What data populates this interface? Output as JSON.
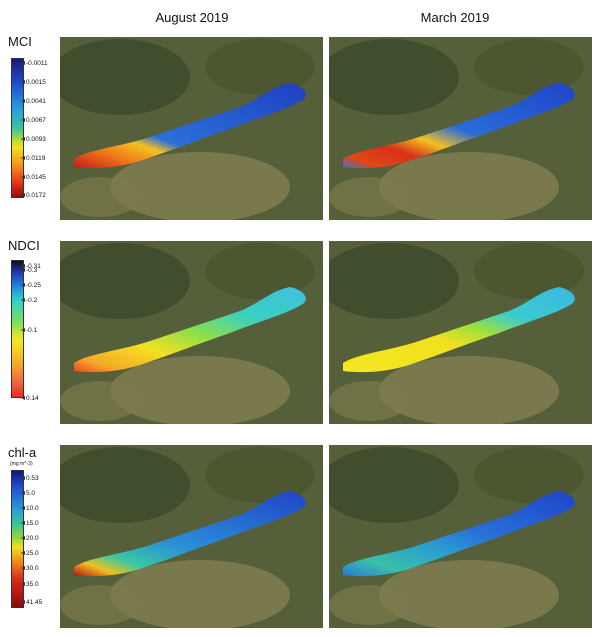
{
  "columns": [
    "August 2019",
    "March 2019"
  ],
  "rows": [
    {
      "label": "MCI",
      "unit": "",
      "ticks": [
        "-0.0011",
        "0.0015",
        "0.0041",
        "0.0067",
        "0.0093",
        "0.0119",
        "0.0145",
        "0.0172"
      ]
    },
    {
      "label": "NDCI",
      "unit": "",
      "ticks": [
        "-0.31",
        "-0.3",
        "-0.25",
        "-0.2",
        "-0.1",
        "0.14"
      ]
    },
    {
      "label": "chl-a",
      "unit": "(mg m^-3)",
      "ticks": [
        "0.53",
        "5.0",
        "10.0",
        "15.0",
        "20.0",
        "25.0",
        "30.0",
        "35.0",
        "41.45"
      ]
    }
  ],
  "colors": {
    "land_dark": "#3e4a2c",
    "land_light": "#8c8a5a",
    "water_blue": "#1f4fd0",
    "water_red": "#d83018",
    "water_yellow": "#f4e020",
    "water_cyan": "#3cc8d0"
  }
}
